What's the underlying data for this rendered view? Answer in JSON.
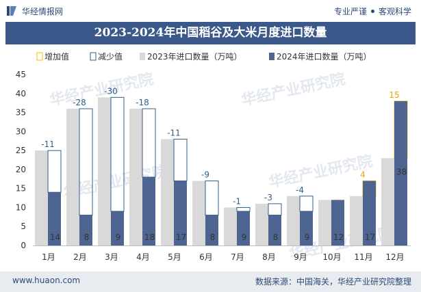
{
  "header": {
    "brand": "华经情报网",
    "tagline_left": "专业严谨",
    "tagline_right": "客观科学"
  },
  "footer": {
    "site": "www.huaon.com",
    "source": "数据来源：中国海关，华经产业研究院整理"
  },
  "watermark": "华经产业研究院",
  "colors": {
    "bar2023": "#d9d9d9",
    "bar2024": "#4f6591",
    "increase": "#f5c000",
    "decrease": "#2f5d8a",
    "title_bg": "#3a5889"
  },
  "chart_data": {
    "type": "bar",
    "title": "2023-2024年中国稻谷及大米月度进口数量",
    "categories": [
      "1月",
      "2月",
      "3月",
      "4月",
      "5月",
      "6月",
      "7月",
      "8月",
      "9月",
      "10月",
      "11月",
      "12月"
    ],
    "series": [
      {
        "name": "2023年进口数量（万吨）",
        "values": [
          25,
          36,
          39,
          36,
          28,
          17,
          10,
          11,
          13,
          12,
          13,
          23
        ]
      },
      {
        "name": "2024年进口数量（万吨）",
        "values": [
          14,
          8,
          9,
          18,
          17,
          8,
          9,
          8,
          9,
          12,
          17,
          38
        ],
        "labels": [
          "14",
          "8",
          "9",
          "18",
          "17",
          "8",
          "9",
          "8",
          "9",
          "12",
          "17",
          "38"
        ]
      }
    ],
    "change": {
      "labels": [
        "-11",
        "-28",
        "-30",
        "-18",
        "-11",
        "-9",
        "-1",
        "-3",
        "-4",
        "",
        "4",
        "15"
      ],
      "types": [
        "decrease",
        "decrease",
        "decrease",
        "decrease",
        "decrease",
        "decrease",
        "decrease",
        "decrease",
        "decrease",
        "none",
        "increase",
        "increase"
      ]
    },
    "legend": [
      {
        "name": "增加值",
        "kind": "increase"
      },
      {
        "name": "减少值",
        "kind": "decrease"
      },
      {
        "name": "2023年进口数量（万吨）",
        "kind": "bar2023"
      },
      {
        "name": "2024年进口数量（万吨）",
        "kind": "bar2024"
      }
    ],
    "legend_position": "top",
    "ylim": [
      0,
      45
    ],
    "yticks": [
      "0",
      "5",
      "10",
      "15",
      "20",
      "25",
      "30",
      "35",
      "40",
      "45"
    ],
    "grid": false
  }
}
